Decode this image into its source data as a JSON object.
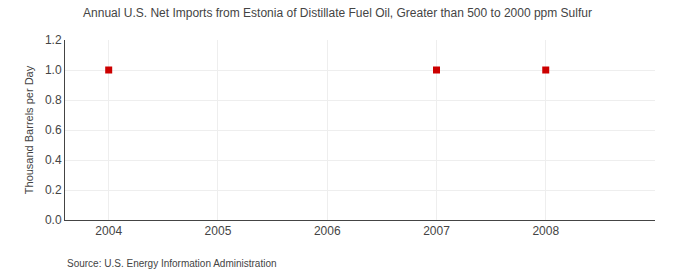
{
  "chart_data": {
    "type": "scatter",
    "title": "Annual U.S. Net Imports from Estonia of Distillate Fuel Oil, Greater than 500 to 2000 ppm Sulfur",
    "y_label": "Thousand Barrels per Day",
    "annotations": [
      "Source: U.S. Energy Information Administration"
    ],
    "x": [
      2004,
      2007,
      2008
    ],
    "values": [
      1.0,
      1.0,
      1.0
    ],
    "color": "#cc0000",
    "marker": "square",
    "xlim": [
      2003.6,
      2009.0
    ],
    "ylim": [
      0.0,
      1.2
    ],
    "xticks": [
      2004,
      2005,
      2006,
      2007,
      2008
    ],
    "yticks": [
      {
        "value": 0,
        "label": "0.0"
      },
      0.2,
      0.4,
      0.6,
      0.8,
      {
        "value": 1,
        "label": "1.0"
      },
      1.2
    ],
    "grid": true
  }
}
